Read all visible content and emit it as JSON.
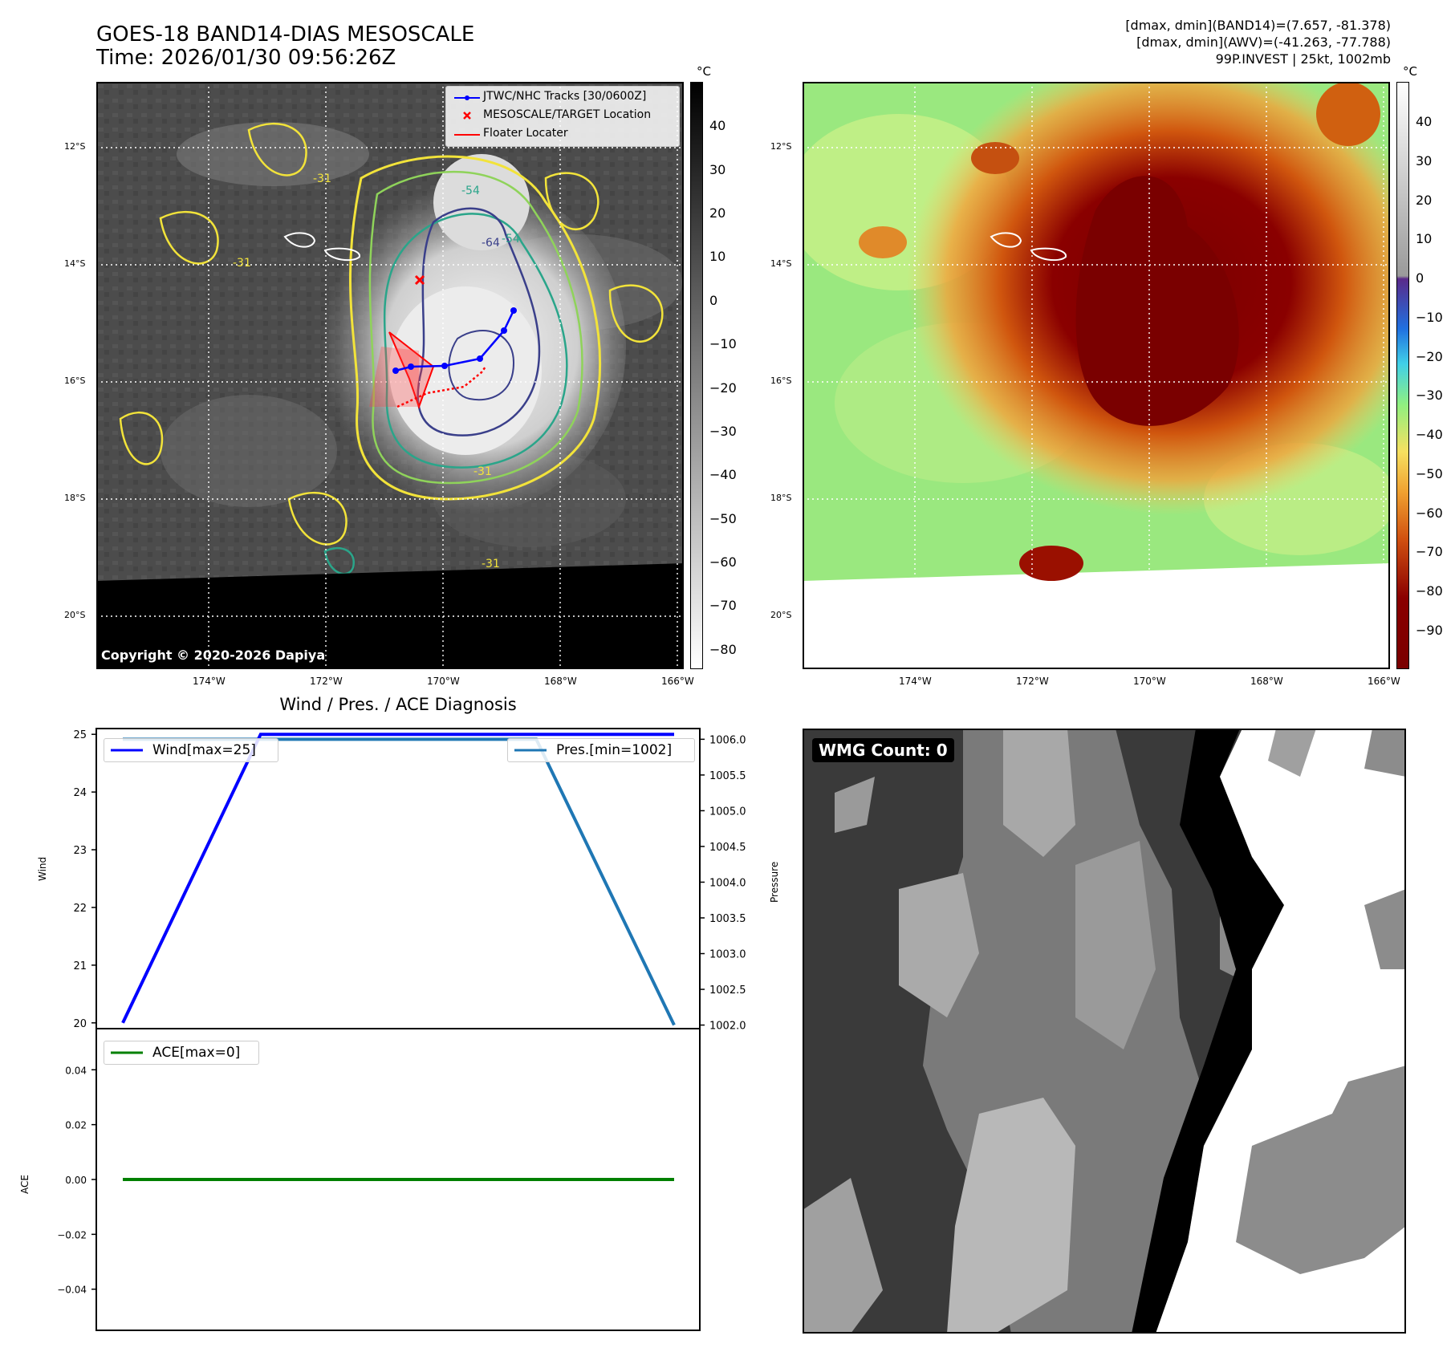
{
  "header": {
    "title_line1": "GOES-18 BAND14-DIAS MESOSCALE",
    "title_line2": "Time: 2026/01/30 09:56:26Z",
    "stats_line1": "[dmax, dmin](BAND14)=(7.657, -81.378)",
    "stats_line2": "[dmax, dmin](AWV)=(-41.263, -77.788)",
    "stats_line3": "99P.INVEST | 25kt, 1002mb"
  },
  "map": {
    "lon_labels": [
      "174°W",
      "172°W",
      "170°W",
      "168°W",
      "166°W"
    ],
    "lat_labels": [
      "12°S",
      "14°S",
      "16°S",
      "18°S",
      "20°S"
    ],
    "copyright": "Copyright © 2020-2026 Dapiya",
    "legend": {
      "tracks": "JTWC/NHC Tracks [30/0600Z]",
      "target": "MESOSCALE/TARGET Location",
      "floater": "Floater Locater"
    },
    "colorbar_left": {
      "unit": "°C",
      "ticks": [
        "40",
        "30",
        "20",
        "10",
        "0",
        "−10",
        "−20",
        "−30",
        "−40",
        "−50",
        "−60",
        "−70",
        "−80"
      ]
    },
    "colorbar_right": {
      "unit": "°C",
      "ticks": [
        "40",
        "30",
        "20",
        "10",
        "0",
        "−10",
        "−20",
        "−30",
        "−40",
        "−50",
        "−60",
        "−70",
        "−80",
        "−90"
      ]
    },
    "contour_labels": [
      "-31",
      "-54",
      "-64",
      "-54",
      "-31",
      "-31",
      "-31"
    ]
  },
  "diagnosis": {
    "title": "Wind / Pres. / ACE Diagnosis",
    "wind_axis_label": "Wind",
    "pressure_axis_label": "Pressure",
    "ace_axis_label": "ACE",
    "wind_legend": "Wind[max=25]",
    "pres_legend": "Pres.[min=1002]",
    "ace_legend": "ACE[max=0]",
    "wmg": "WMG Count: 0",
    "colors": {
      "wind": "#0000ff",
      "pres": "#1f77b4",
      "ace": "#008000"
    }
  },
  "chart_data": [
    {
      "type": "line",
      "xlabel": "",
      "ylabel": "Wind",
      "y2label": "Pressure",
      "x": [
        0,
        1,
        2,
        3,
        4
      ],
      "series": [
        {
          "name": "Wind[max=25]",
          "axis": "left",
          "values": [
            20,
            25,
            25,
            25,
            25
          ]
        },
        {
          "name": "Pres.[min=1002]",
          "axis": "right",
          "values": [
            1006,
            1006,
            1006,
            1006,
            1002
          ]
        }
      ],
      "ylim": [
        19.9,
        25.1
      ],
      "y2lim": [
        1001.95,
        1006.15
      ],
      "yticks": [
        "20",
        "21",
        "22",
        "23",
        "24",
        "25"
      ],
      "y2ticks": [
        "1002.0",
        "1002.5",
        "1003.0",
        "1003.5",
        "1004.0",
        "1004.5",
        "1005.0",
        "1005.5",
        "1006.0"
      ]
    },
    {
      "type": "line",
      "ylabel": "ACE",
      "x": [
        0,
        1,
        2,
        3,
        4
      ],
      "series": [
        {
          "name": "ACE[max=0]",
          "values": [
            0,
            0,
            0,
            0,
            0
          ]
        }
      ],
      "ylim": [
        -0.055,
        0.055
      ],
      "yticks": [
        "0.04",
        "0.02",
        "0.00",
        "−0.02",
        "−0.04"
      ]
    }
  ]
}
